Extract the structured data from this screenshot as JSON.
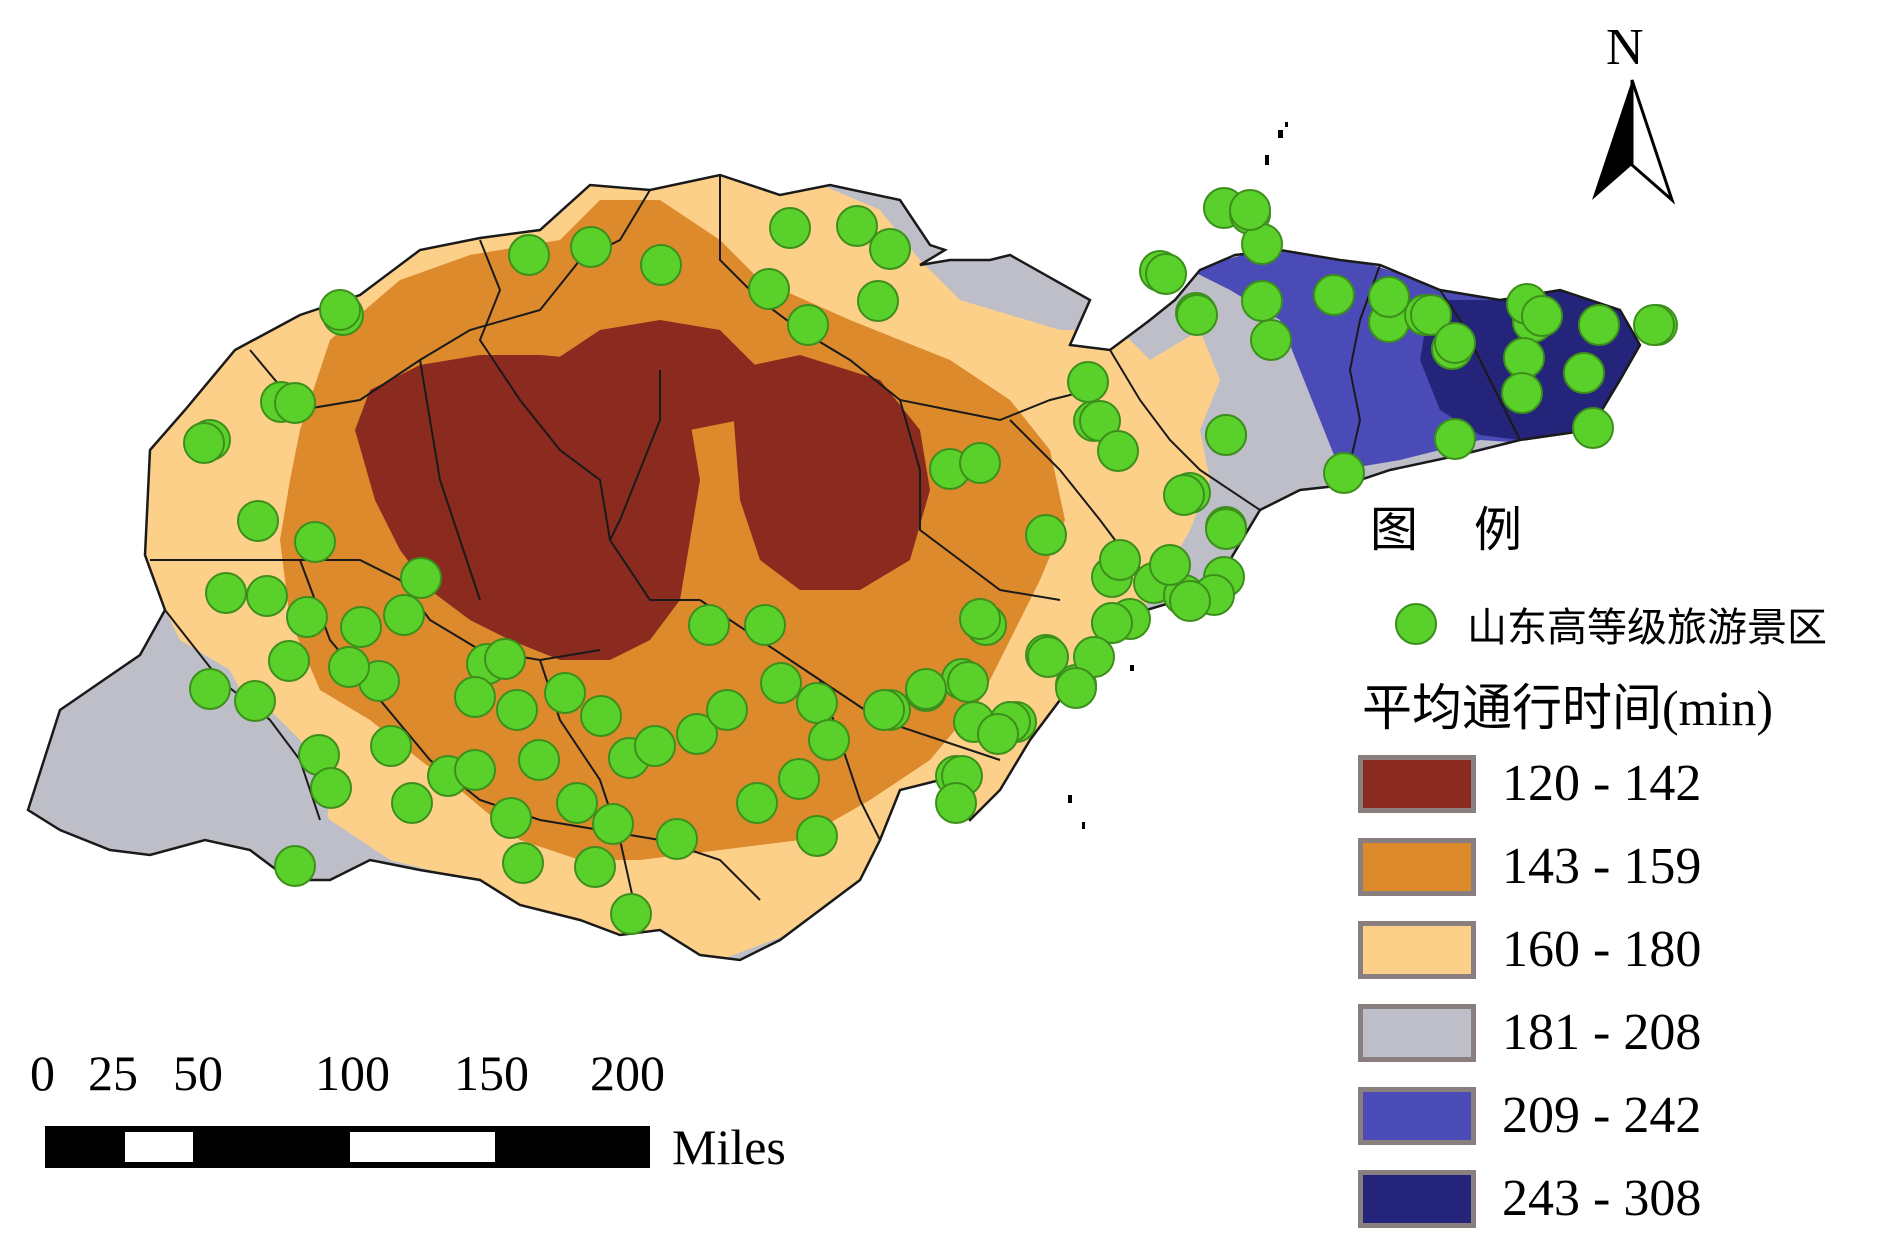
{
  "north_arrow": {
    "label": "N",
    "icon": "north-arrow-icon"
  },
  "legend": {
    "title": "图 例",
    "point_label": "山东高等级旅游景区",
    "point_color": "#5ad12a",
    "subtitle": "平均通行时间(min)",
    "classes": [
      {
        "range": "120 - 142",
        "color": "#8b2a1f"
      },
      {
        "range": "143 - 159",
        "color": "#dc8a2c"
      },
      {
        "range": "160 - 180",
        "color": "#fdd08a"
      },
      {
        "range": "181 - 208",
        "color": "#bebec8"
      },
      {
        "range": "209 - 242",
        "color": "#4b4bb8"
      },
      {
        "range": "243 - 308",
        "color": "#24247a"
      }
    ]
  },
  "scale_bar": {
    "ticks": [
      "0",
      "25",
      "50",
      "100",
      "150",
      "200"
    ],
    "unit": "Miles"
  }
}
